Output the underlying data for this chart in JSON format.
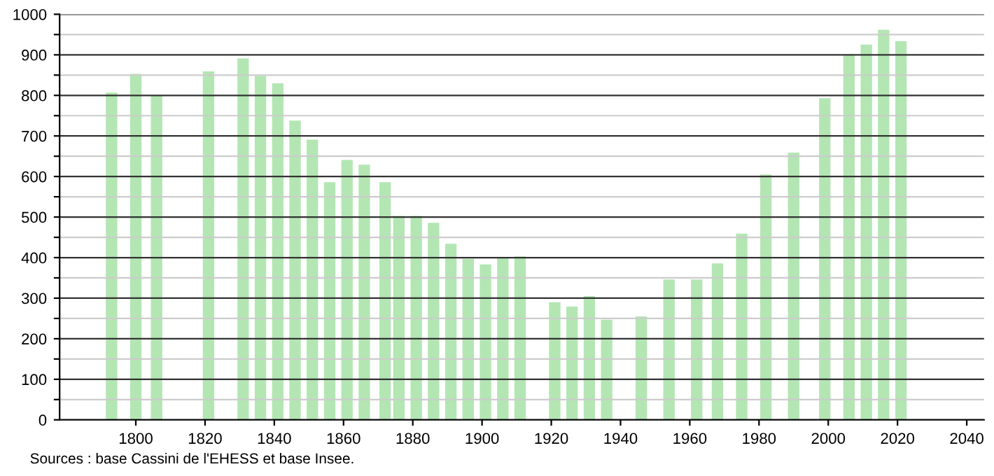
{
  "chart_data": {
    "type": "bar",
    "x": [
      1793,
      1800,
      1806,
      1821,
      1831,
      1836,
      1841,
      1846,
      1851,
      1856,
      1861,
      1866,
      1872,
      1876,
      1881,
      1886,
      1891,
      1896,
      1901,
      1906,
      1911,
      1921,
      1926,
      1931,
      1936,
      1946,
      1954,
      1962,
      1968,
      1975,
      1982,
      1990,
      1999,
      2006,
      2011,
      2016,
      2021
    ],
    "values": [
      807,
      853,
      800,
      859,
      891,
      848,
      830,
      738,
      691,
      586,
      641,
      629,
      586,
      503,
      503,
      486,
      434,
      397,
      383,
      401,
      403,
      290,
      279,
      305,
      247,
      255,
      346,
      346,
      386,
      459,
      605,
      659,
      793,
      899,
      925,
      962,
      934
    ],
    "color": "#b3e6b3",
    "xlim": [
      1778,
      2045
    ],
    "xticks": [
      1800,
      1820,
      1840,
      1860,
      1880,
      1900,
      1920,
      1940,
      1960,
      1980,
      2000,
      2020,
      2040
    ],
    "ylim": [
      0,
      1000
    ],
    "yticks": [
      0,
      {
        "value": 50,
        "label": null
      },
      100,
      {
        "value": 150,
        "label": null
      },
      200,
      {
        "value": 250,
        "label": null
      },
      300,
      {
        "value": 350,
        "label": null
      },
      400,
      {
        "value": 450,
        "label": null
      },
      500,
      {
        "value": 550,
        "label": null
      },
      600,
      {
        "value": 650,
        "label": null
      },
      700,
      {
        "value": 750,
        "label": null
      },
      800,
      {
        "value": 850,
        "label": null
      },
      900,
      {
        "value": 950,
        "label": null
      },
      1000
    ],
    "grid": "y",
    "annotations": [
      "Sources : base Cassini de l'EHESS et base Insee."
    ]
  }
}
